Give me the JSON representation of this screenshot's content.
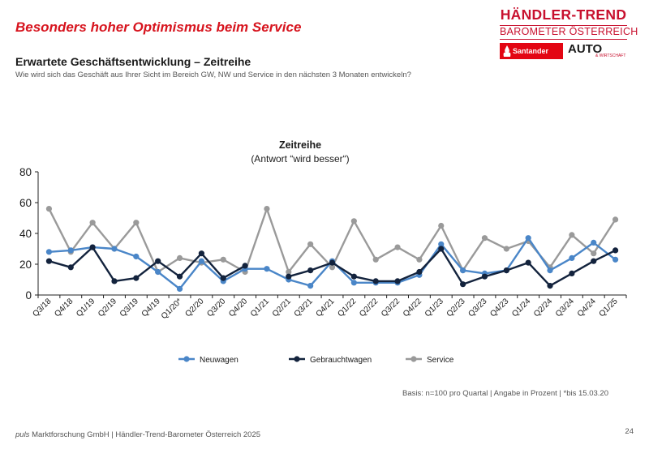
{
  "header": {
    "headline": "Besonders hoher Optimismus beim Service",
    "subhead": "Erwartete Geschäftsentwicklung – Zeitreihe",
    "question": "Wie wird sich das Geschäft aus Ihrer Sicht im Bereich GW, NW und Service in den nächsten 3 Monaten entwickeln?"
  },
  "logo": {
    "title": "HÄNDLER-TREND",
    "subtitle": "BAROMETER ÖSTERREICH",
    "sponsor": "Santander",
    "sponsor_sub": "CONSUMER BANK",
    "partner": "AUTO",
    "partner_sub": "& WIRTSCHAFT"
  },
  "chart_data": {
    "type": "line",
    "title": "Zeitreihe",
    "subtitle": "(Antwort “wird besser“)",
    "ylim": [
      0,
      80
    ],
    "yticks": [
      0,
      20,
      40,
      60,
      80
    ],
    "grid": false,
    "legend_position": "bottom",
    "categories": [
      "Q3/18",
      "Q4/18",
      "Q1/19",
      "Q2/19",
      "Q3/19",
      "Q4/19",
      "Q1/20*",
      "Q2/20",
      "Q3/20",
      "Q4/20",
      "Q1/21",
      "Q2/21",
      "Q3/21",
      "Q4/21",
      "Q1/22",
      "Q2/22",
      "Q3/22",
      "Q4/22",
      "Q1/23",
      "Q2/23",
      "Q3/23",
      "Q4/23",
      "Q1/24",
      "Q2/24",
      "Q3/24",
      "Q4/24",
      "Q1/25"
    ],
    "series": [
      {
        "name": "Neuwagen",
        "color": "#4a86c8",
        "values": [
          28,
          29,
          31,
          30,
          25,
          15,
          4,
          22,
          9,
          17,
          17,
          10,
          6,
          22,
          8,
          8,
          8,
          13,
          33,
          16,
          14,
          16,
          37,
          16,
          24,
          34,
          23
        ]
      },
      {
        "name": "Gebrauchtwagen",
        "color": "#13233d",
        "values": [
          22,
          18,
          31,
          9,
          11,
          22,
          12,
          27,
          11,
          19,
          null,
          12,
          16,
          21,
          12,
          9,
          9,
          15,
          30,
          7,
          12,
          16,
          21,
          6,
          14,
          22,
          29
        ]
      },
      {
        "name": "Service",
        "color": "#9a9a9a",
        "values": [
          56,
          28,
          47,
          30,
          47,
          15,
          24,
          21,
          23,
          15,
          56,
          15,
          33,
          18,
          48,
          23,
          31,
          23,
          45,
          16,
          37,
          30,
          35,
          18,
          39,
          27,
          49
        ]
      }
    ]
  },
  "basis": "Basis: n=100 pro Quartal | Angabe in Prozent | *bis 15.03.20",
  "footer": {
    "company_em": "puls",
    "company_rest": " Marktforschung GmbH | Händler-Trend-Barometer Österreich 2025",
    "page": "24"
  }
}
